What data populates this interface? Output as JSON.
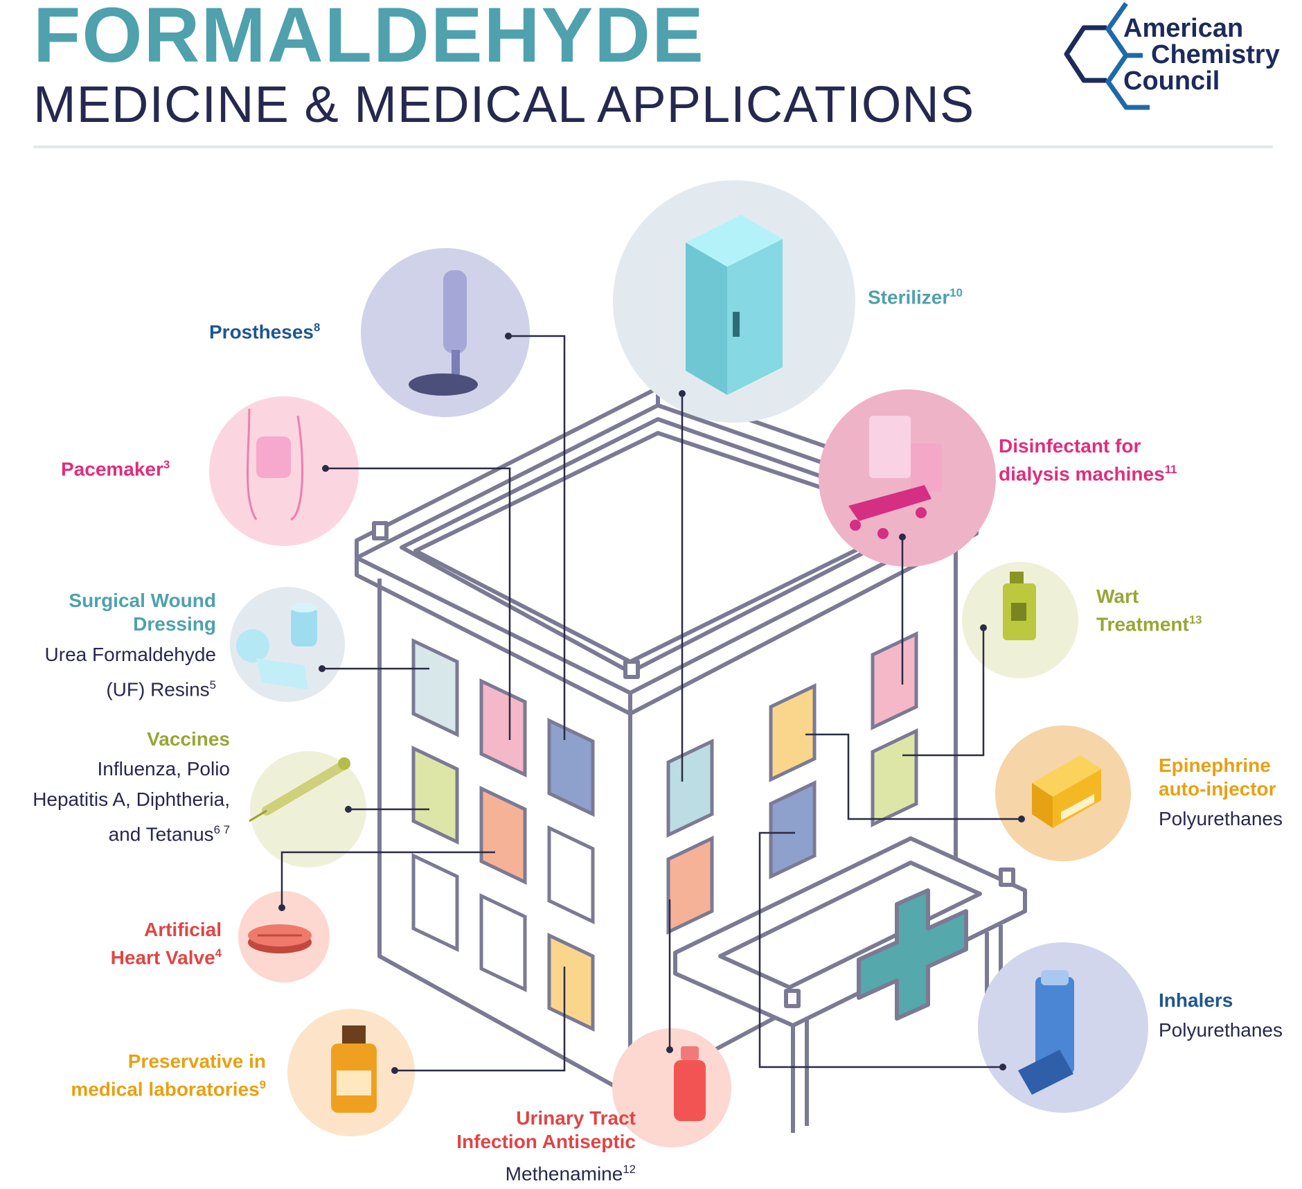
{
  "header": {
    "title": "FORMALDEHYDE",
    "subtitle": "MEDICINE & MEDICAL APPLICATIONS"
  },
  "logo": {
    "line1": "American",
    "line2": "Chemistry",
    "line3": "Council",
    "icon": "hexagon-logo-icon"
  },
  "items": {
    "sterilizer": {
      "title": "Sterilizer",
      "ref": "10"
    },
    "prostheses": {
      "title": "Prostheses",
      "ref": "8"
    },
    "pacemaker": {
      "title": "Pacemaker",
      "ref": "3"
    },
    "dialysis": {
      "title_line1": "Disinfectant for",
      "title_line2": "dialysis machines",
      "ref": "11"
    },
    "wart": {
      "title_line1": "Wart",
      "title_line2": "Treatment",
      "ref": "13"
    },
    "wound": {
      "title_line1": "Surgical Wound",
      "title_line2": "Dressing",
      "desc_line1": "Urea Formaldehyde",
      "desc_line2": "(UF) Resins",
      "ref": "5"
    },
    "vaccines": {
      "title": "Vaccines",
      "desc_line1": "Influenza, Polio",
      "desc_line2": "Hepatitis A, Diphtheria,",
      "desc_line3": "and Tetanus",
      "ref": "6 7"
    },
    "epinephrine": {
      "title_line1": "Epinephrine",
      "title_line2": "auto-injector",
      "desc": "Polyurethanes"
    },
    "heart_valve": {
      "title_line1": "Artificial",
      "title_line2": "Heart Valve",
      "ref": "4"
    },
    "inhalers": {
      "title": "Inhalers",
      "desc": "Polyurethanes"
    },
    "preservative": {
      "title_line1": "Preservative in",
      "title_line2": "medical laboratories",
      "ref": "9"
    },
    "urinary": {
      "title_line1": "Urinary Tract",
      "title_line2": "Infection Antiseptic",
      "desc": "Methenamine",
      "ref": "12"
    }
  },
  "colors": {
    "teal": "#4ea1ad",
    "navy": "#1e5690",
    "pink": "#e02d7c",
    "lime": "#98a636",
    "red": "#e04545",
    "orange": "#e8a012",
    "outline": "#7b7a94"
  }
}
